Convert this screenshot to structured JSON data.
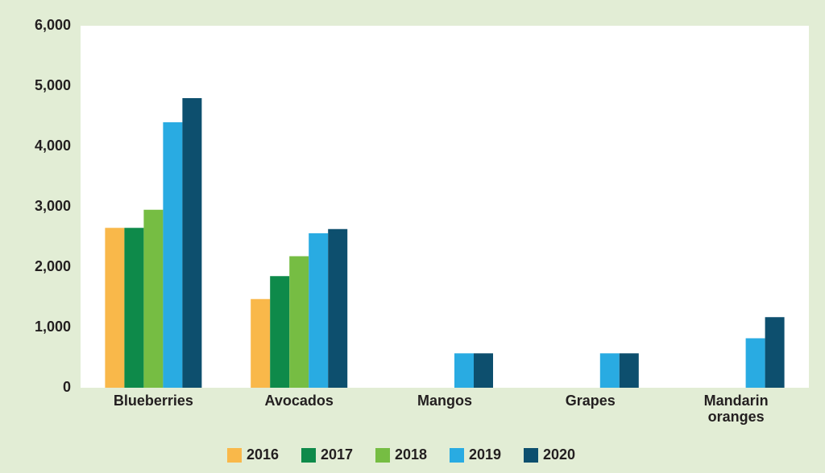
{
  "chart_data": {
    "type": "bar",
    "categories": [
      "Blueberries",
      "Avocados",
      "Mangos",
      "Grapes",
      "Mandarin oranges"
    ],
    "series": [
      {
        "name": "2016",
        "color": "#f9b84a",
        "values": [
          2650,
          1470,
          null,
          null,
          null
        ]
      },
      {
        "name": "2017",
        "color": "#0e8a4a",
        "values": [
          2650,
          1850,
          null,
          null,
          null
        ]
      },
      {
        "name": "2018",
        "color": "#76bd43",
        "values": [
          2950,
          2180,
          null,
          null,
          null
        ]
      },
      {
        "name": "2019",
        "color": "#29abe2",
        "values": [
          4400,
          2560,
          570,
          570,
          820
        ]
      },
      {
        "name": "2020",
        "color": "#0d4f6e",
        "values": [
          4800,
          2630,
          570,
          570,
          1170
        ]
      }
    ],
    "ylim": [
      0,
      6000
    ],
    "yticks": [
      0,
      {
        "value": 1000,
        "label": "1,000"
      },
      {
        "value": 2000,
        "label": "2,000"
      },
      {
        "value": 3000,
        "label": "3,000"
      },
      {
        "value": 4000,
        "label": "4,000"
      },
      {
        "value": 5000,
        "label": "5,000"
      },
      {
        "value": 6000,
        "label": "6,000"
      }
    ],
    "legend": "bottom"
  }
}
